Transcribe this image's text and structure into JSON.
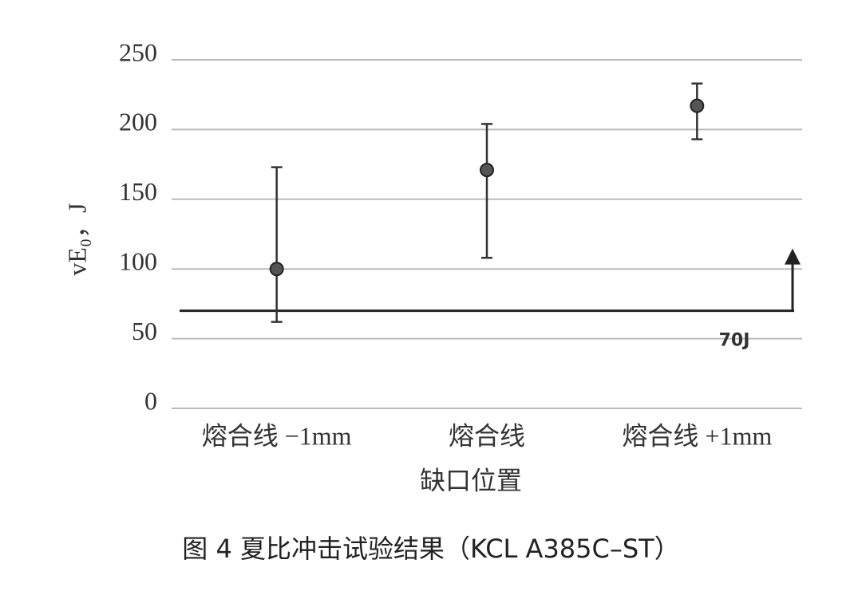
{
  "chart_data": {
    "type": "errorbar",
    "title": "图 4 夏比冲击试验结果（KCL A385C–ST）",
    "x_label": "缺口位置",
    "y_label": "vE₀，J",
    "categories": [
      "熔合线 −1mm",
      "熔合线",
      "熔合线 +1mm"
    ],
    "series": [
      {
        "values": [
          100,
          171,
          217
        ],
        "lower": [
          62,
          108,
          193
        ],
        "upper": [
          173,
          204,
          233
        ],
        "color": "#555555"
      }
    ],
    "threshold": {
      "value": 70,
      "label": "70J"
    },
    "ylim": [
      0,
      250
    ],
    "yticks": [
      0,
      50,
      100,
      150,
      200,
      250
    ],
    "grid": true
  }
}
